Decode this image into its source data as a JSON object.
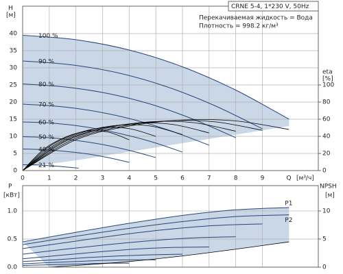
{
  "chart_data": [
    {
      "type": "line",
      "title": "CRNE 5-4, 1*230 V, 50Hz",
      "annotations": [
        "Перекачиваемая жидкость = Вода",
        "Плотность = 998.2 кг/м³"
      ],
      "y_label": "H",
      "y_unit": "[м]",
      "y2_label": "eta",
      "y2_unit": "[%]",
      "x_label": "Q",
      "x_unit": "[м³/ч]",
      "xlim": [
        0,
        11.1
      ],
      "xticks": [
        0,
        1,
        2,
        3,
        4,
        5,
        6,
        7,
        8,
        9
      ],
      "ylim": [
        0,
        48
      ],
      "yticks": [
        0,
        5,
        10,
        15,
        20,
        25,
        30,
        35,
        40
      ],
      "y2lim": [
        0,
        192
      ],
      "y2ticks": [
        0,
        20,
        40,
        60,
        80,
        100
      ],
      "grid": true,
      "area": {
        "color": "#c9d7e6",
        "x": [
          0,
          2,
          4,
          6,
          8,
          10
        ],
        "values": [
          1,
          3,
          5.5,
          8,
          10.5,
          13
        ]
      },
      "series": [
        {
          "name": "100 %",
          "color": "#27457c",
          "x": [
            0,
            2,
            4,
            6,
            8,
            10
          ],
          "values": [
            39.5,
            38.2,
            35.2,
            30.3,
            23.5,
            15
          ]
        },
        {
          "name": "90 %",
          "color": "#27457c",
          "x": [
            0,
            1.8,
            3.6,
            5.4,
            7.2,
            9
          ],
          "values": [
            32,
            30.9,
            28.5,
            24.5,
            19,
            12.2
          ]
        },
        {
          "name": "80 %",
          "color": "#27457c",
          "x": [
            0,
            1.6,
            3.2,
            4.8,
            6.4,
            8
          ],
          "values": [
            25.3,
            24.4,
            22.5,
            19.4,
            15,
            9.6
          ]
        },
        {
          "name": "70 %",
          "color": "#27457c",
          "x": [
            0,
            1.4,
            2.8,
            4.2,
            5.6,
            7
          ],
          "values": [
            19.4,
            18.7,
            17.2,
            14.8,
            11.5,
            7.4
          ]
        },
        {
          "name": "60 %",
          "color": "#27457c",
          "x": [
            0,
            1.2,
            2.4,
            3.6,
            4.8,
            6
          ],
          "values": [
            14.2,
            13.8,
            12.7,
            10.9,
            8.5,
            5.4
          ]
        },
        {
          "name": "50 %",
          "color": "#27457c",
          "x": [
            0,
            1,
            2,
            3,
            4,
            5
          ],
          "values": [
            9.9,
            9.6,
            8.8,
            7.6,
            5.9,
            3.8
          ]
        },
        {
          "name": "40 %",
          "color": "#27457c",
          "x": [
            0,
            0.8,
            1.6,
            2.4,
            3.2,
            4
          ],
          "values": [
            6.3,
            6.1,
            5.6,
            4.9,
            3.8,
            2.4
          ]
        },
        {
          "name": "21 %",
          "color": "#27457c",
          "x": [
            0,
            0.42,
            0.84,
            1.26,
            1.68,
            2.1
          ],
          "values": [
            1.7,
            1.7,
            1.5,
            1.3,
            1,
            0.7
          ]
        },
        {
          "axis": "y2",
          "color": "#000000",
          "x": [
            0,
            2,
            4,
            6,
            8,
            10
          ],
          "values": [
            0,
            36,
            52,
            59,
            58,
            48
          ]
        },
        {
          "axis": "y2",
          "color": "#000000",
          "x": [
            0,
            1.8,
            3.6,
            5.4,
            7.2,
            9
          ],
          "values": [
            0,
            35,
            51,
            58,
            57,
            47
          ]
        },
        {
          "axis": "y2",
          "color": "#000000",
          "x": [
            0,
            1.6,
            3.2,
            4.8,
            6.4,
            8
          ],
          "values": [
            0,
            34,
            50,
            57,
            56,
            46
          ]
        },
        {
          "axis": "y2",
          "color": "#000000",
          "x": [
            0,
            1.4,
            2.8,
            4.2,
            5.6,
            7
          ],
          "values": [
            0,
            32,
            48,
            55,
            54,
            44
          ]
        },
        {
          "axis": "y2",
          "color": "#000000",
          "x": [
            0,
            1.2,
            2.4,
            3.6,
            4.8,
            6
          ],
          "values": [
            0,
            30,
            46,
            53,
            52,
            42
          ]
        },
        {
          "axis": "y2",
          "color": "#000000",
          "x": [
            0,
            1,
            2,
            3,
            4,
            5
          ],
          "values": [
            0,
            28,
            43,
            50,
            49,
            40
          ]
        },
        {
          "axis": "y2",
          "color": "#000000",
          "x": [
            0,
            0.8,
            1.6,
            2.4,
            3.2,
            4
          ],
          "values": [
            0,
            25,
            39,
            46,
            45,
            36
          ]
        }
      ]
    },
    {
      "type": "line",
      "y_label": "P",
      "y_unit": "[кВт]",
      "y2_label": "NPSH",
      "y2_unit": "[м]",
      "xlim": [
        0,
        11.1
      ],
      "xticks": [
        0,
        1,
        2,
        3,
        4,
        5,
        6,
        7,
        8,
        9
      ],
      "ylim": [
        0,
        1.45
      ],
      "yticks": [
        {
          "value": 0,
          "label": "0.0"
        },
        0.5,
        {
          "value": 1,
          "label": "1.0"
        }
      ],
      "y2lim": [
        0,
        14.5
      ],
      "y2ticks": [
        0,
        5,
        10
      ],
      "grid": true,
      "area_color": "#c9d7e6",
      "series": [
        {
          "name": "P1",
          "color": "#27457c",
          "x": [
            0,
            2,
            4,
            6,
            8,
            10
          ],
          "values": [
            0.45,
            0.62,
            0.78,
            0.92,
            1.02,
            1.06
          ]
        },
        {
          "name": "P2",
          "color": "#27457c",
          "x": [
            0,
            2,
            4,
            6,
            8,
            10
          ],
          "values": [
            0.4,
            0.55,
            0.69,
            0.81,
            0.9,
            0.93
          ]
        },
        {
          "color": "#27457c",
          "x": [
            0,
            1.8,
            3.6,
            5.4,
            7.2,
            9
          ],
          "values": [
            0.33,
            0.45,
            0.57,
            0.67,
            0.74,
            0.77
          ]
        },
        {
          "color": "#27457c",
          "x": [
            0,
            1.6,
            3.2,
            4.8,
            6.4,
            8
          ],
          "values": [
            0.23,
            0.32,
            0.4,
            0.47,
            0.52,
            0.54
          ]
        },
        {
          "color": "#27457c",
          "x": [
            0,
            1.4,
            2.8,
            4.2,
            5.6,
            7
          ],
          "values": [
            0.15,
            0.21,
            0.27,
            0.32,
            0.35,
            0.36
          ]
        },
        {
          "color": "#27457c",
          "x": [
            0,
            1.2,
            2.4,
            3.6,
            4.8,
            6
          ],
          "values": [
            0.1,
            0.13,
            0.17,
            0.2,
            0.22,
            0.23
          ]
        },
        {
          "color": "#27457c",
          "x": [
            0,
            1,
            2,
            3,
            4,
            5
          ],
          "values": [
            0.06,
            0.08,
            0.1,
            0.12,
            0.13,
            0.13
          ]
        },
        {
          "color": "#27457c",
          "x": [
            0,
            0.8,
            1.6,
            2.4,
            3.2,
            4
          ],
          "values": [
            0.03,
            0.04,
            0.05,
            0.06,
            0.07,
            0.07
          ]
        },
        {
          "axis": "y2",
          "color": "#000000",
          "x": [
            1,
            2,
            4,
            6,
            8,
            10
          ],
          "values": [
            0,
            0.3,
            1,
            2,
            3.2,
            4.5
          ]
        }
      ]
    }
  ]
}
